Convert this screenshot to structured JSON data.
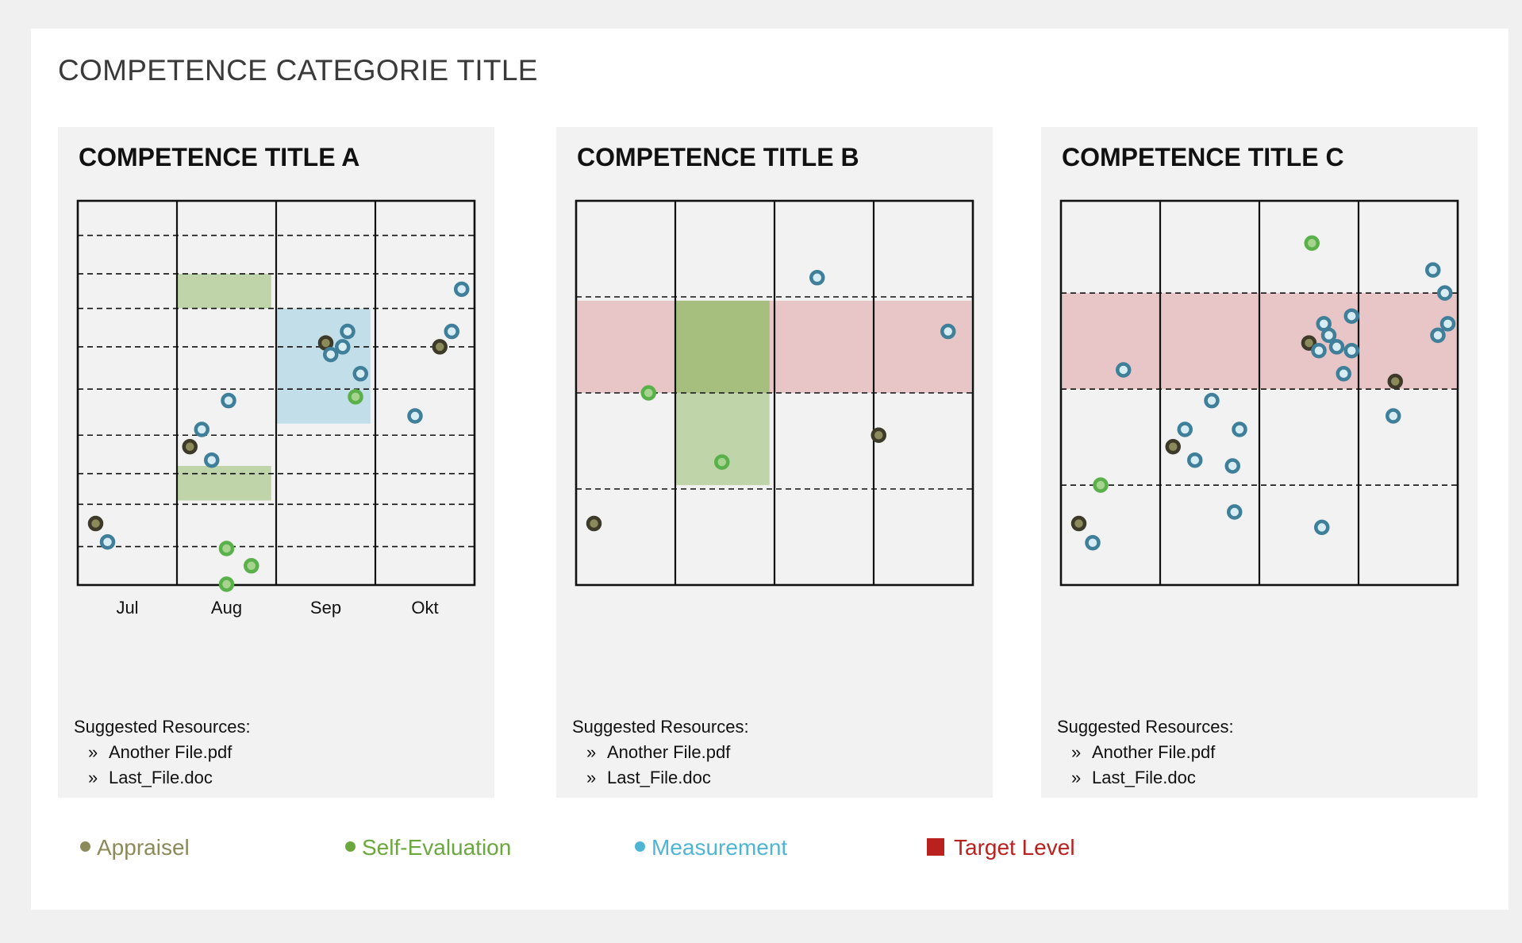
{
  "page": {
    "title": "COMPETENCE CATEGORIE TITLE"
  },
  "colors": {
    "appraisel": "#3d3a2a",
    "self_evaluation": "#5ab04a",
    "measurement": "#3f7f9a",
    "target_band": "#e8c6c8",
    "appraisel_text": "#8b8a5a",
    "self_evaluation_text": "#6aa83d",
    "measurement_text": "#4fb5d5",
    "target_text": "#b9211f"
  },
  "resources": {
    "heading": "Suggested Resources:",
    "bullet": "»",
    "files": [
      "Another File.pdf",
      "Last_File.doc"
    ]
  },
  "legend": {
    "items": [
      {
        "label": "Appraisel",
        "kind": "dot",
        "color": "#8b8a5a"
      },
      {
        "label": "Self-Evaluation",
        "kind": "dot",
        "color": "#6aa83d"
      },
      {
        "label": "Measurement",
        "kind": "dot",
        "color": "#4fb5d5"
      },
      {
        "label": "Target Level",
        "kind": "square",
        "color": "#b9211f"
      }
    ]
  },
  "chart_data": [
    {
      "type": "scatter",
      "title": "COMPETENCE TITLE A",
      "categories": [
        "Jul",
        "Aug",
        "Sep",
        "Okt"
      ],
      "xlim": [
        0,
        4
      ],
      "ylim": [
        0,
        10
      ],
      "dashed_levels": [
        1,
        2.1,
        2.9,
        3.9,
        5.1,
        6.2,
        7.2,
        8.1,
        9.1
      ],
      "bands": [
        {
          "kind": "self",
          "x": [
            1,
            1.95
          ],
          "y": [
            7.2,
            8.1
          ]
        },
        {
          "kind": "self",
          "x": [
            1,
            1.95
          ],
          "y": [
            2.2,
            3.1
          ]
        },
        {
          "kind": "measure",
          "x": [
            2,
            2.95
          ],
          "y": [
            4.2,
            7.2
          ]
        }
      ],
      "series": [
        {
          "name": "Appraisel",
          "kind": "appraisel",
          "points": [
            [
              0.18,
              1.6
            ],
            [
              1.13,
              3.6
            ],
            [
              2.5,
              6.3
            ],
            [
              3.65,
              6.2
            ]
          ]
        },
        {
          "name": "Self-Evaluation",
          "kind": "self",
          "points": [
            [
              1.5,
              0.95
            ],
            [
              1.5,
              0.02
            ],
            [
              1.75,
              0.5
            ],
            [
              2.8,
              4.9
            ]
          ]
        },
        {
          "name": "Measurement",
          "kind": "measure",
          "points": [
            [
              0.3,
              1.12
            ],
            [
              1.52,
              4.8
            ],
            [
              1.25,
              4.05
            ],
            [
              1.35,
              3.25
            ],
            [
              2.55,
              6.0
            ],
            [
              2.72,
              6.6
            ],
            [
              2.67,
              6.2
            ],
            [
              2.85,
              5.5
            ],
            [
              3.4,
              4.4
            ],
            [
              3.77,
              6.6
            ],
            [
              3.87,
              7.7
            ]
          ]
        }
      ]
    },
    {
      "type": "scatter",
      "title": "COMPETENCE TITLE B",
      "categories": [
        "",
        "",
        "",
        ""
      ],
      "xlim": [
        0,
        4
      ],
      "ylim": [
        0,
        10
      ],
      "dashed_levels": [
        2.5,
        5.0,
        7.5
      ],
      "target_level": [
        5.0,
        7.4
      ],
      "bands": [
        {
          "kind": "self",
          "x": [
            1,
            1.95
          ],
          "y": [
            2.6,
            7.4
          ]
        },
        {
          "kind": "self",
          "x": [
            1,
            1.95
          ],
          "y": [
            5.0,
            7.4
          ]
        }
      ],
      "series": [
        {
          "name": "Appraisel",
          "kind": "appraisel",
          "points": [
            [
              0.18,
              1.6
            ],
            [
              3.05,
              3.9
            ]
          ]
        },
        {
          "name": "Self-Evaluation",
          "kind": "self",
          "points": [
            [
              0.73,
              5.0
            ],
            [
              1.47,
              3.2
            ]
          ]
        },
        {
          "name": "Measurement",
          "kind": "measure",
          "points": [
            [
              2.43,
              8.0
            ],
            [
              3.75,
              6.6
            ]
          ]
        }
      ]
    },
    {
      "type": "scatter",
      "title": "COMPETENCE TITLE C",
      "categories": [
        "",
        "",
        "",
        ""
      ],
      "xlim": [
        0,
        4
      ],
      "ylim": [
        0,
        10
      ],
      "dashed_levels": [
        2.6,
        5.1,
        7.6
      ],
      "target_level": [
        5.1,
        7.6
      ],
      "bands": [],
      "series": [
        {
          "name": "Appraisel",
          "kind": "appraisel",
          "points": [
            [
              0.18,
              1.6
            ],
            [
              1.13,
              3.6
            ],
            [
              2.5,
              6.3
            ],
            [
              3.37,
              5.3
            ]
          ]
        },
        {
          "name": "Self-Evaluation",
          "kind": "self",
          "points": [
            [
              0.4,
              2.6
            ],
            [
              2.53,
              8.9
            ]
          ]
        },
        {
          "name": "Measurement",
          "kind": "measure",
          "points": [
            [
              0.32,
              1.1
            ],
            [
              0.63,
              5.6
            ],
            [
              1.52,
              4.8
            ],
            [
              1.25,
              4.05
            ],
            [
              1.35,
              3.25
            ],
            [
              1.8,
              4.05
            ],
            [
              1.73,
              3.1
            ],
            [
              1.75,
              1.9
            ],
            [
              2.63,
              1.5
            ],
            [
              2.6,
              6.1
            ],
            [
              2.7,
              6.5
            ],
            [
              2.65,
              6.8
            ],
            [
              2.78,
              6.2
            ],
            [
              2.93,
              6.1
            ],
            [
              2.93,
              7.0
            ],
            [
              2.85,
              5.5
            ],
            [
              3.35,
              4.4
            ],
            [
              3.75,
              8.2
            ],
            [
              3.87,
              7.6
            ],
            [
              3.9,
              6.8
            ],
            [
              3.8,
              6.5
            ]
          ]
        }
      ]
    }
  ]
}
